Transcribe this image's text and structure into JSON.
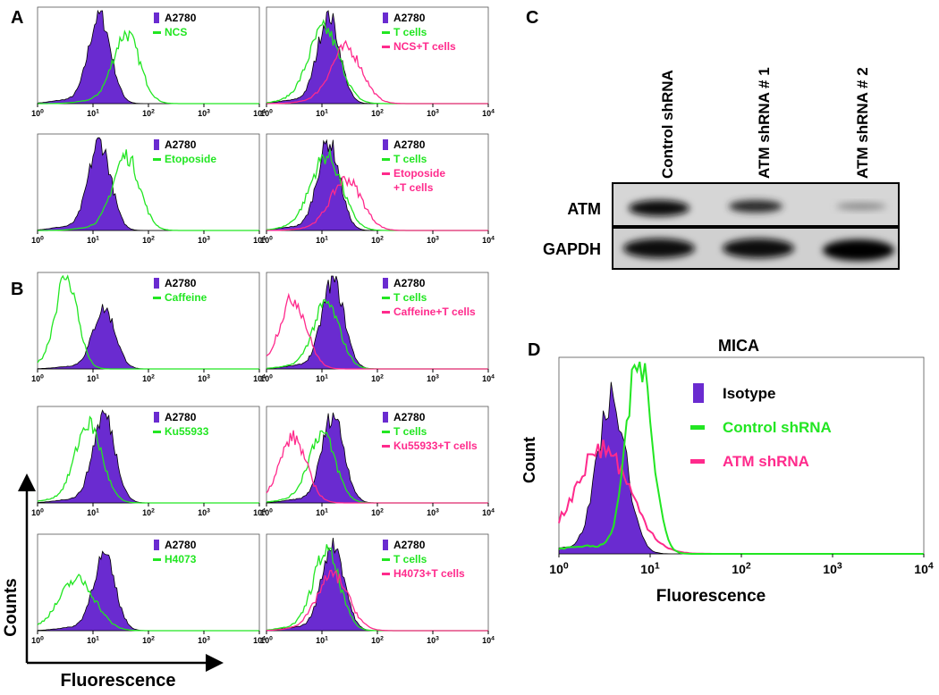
{
  "panel_labels": [
    "A",
    "B",
    "C",
    "D"
  ],
  "small_plots": [
    {
      "legend": [
        "A2780",
        "NCS"
      ]
    },
    {
      "legend": [
        "A2780",
        "T cells",
        "NCS+T cells"
      ]
    },
    {
      "legend": [
        "A2780",
        "Etoposide"
      ]
    },
    {
      "legend": [
        "A2780",
        "T cells",
        "Etoposide",
        "+T cells"
      ]
    },
    {
      "legend": [
        "A2780",
        "Caffeine"
      ]
    },
    {
      "legend": [
        "A2780",
        "T cells",
        "Caffeine+T cells"
      ]
    },
    {
      "legend": [
        "A2780",
        "Ku55933"
      ]
    },
    {
      "legend": [
        "A2780",
        "T cells",
        "Ku55933+T cells"
      ]
    },
    {
      "legend": [
        "A2780",
        "H4073"
      ]
    },
    {
      "legend": [
        "A2780",
        "T cells",
        "H4073+T cells"
      ]
    }
  ],
  "tick_labels": [
    {
      "base": "10",
      "exp": "0"
    },
    {
      "base": "10",
      "exp": "1"
    },
    {
      "base": "10",
      "exp": "2"
    },
    {
      "base": "10",
      "exp": "3"
    },
    {
      "base": "10",
      "exp": "4"
    }
  ],
  "axes": {
    "x_label": "Fluorescence",
    "y_label": "Counts"
  },
  "blot": {
    "columns": [
      "Control shRNA",
      "ATM shRNA # 1",
      "ATM shRNA # 2"
    ],
    "rows": [
      "ATM",
      "GAPDH"
    ]
  },
  "mica": {
    "title": "MICA",
    "legend": [
      "Isotype",
      "Control shRNA",
      "ATM shRNA"
    ],
    "x_label": "Fluorescence",
    "y_label": "Count"
  }
}
